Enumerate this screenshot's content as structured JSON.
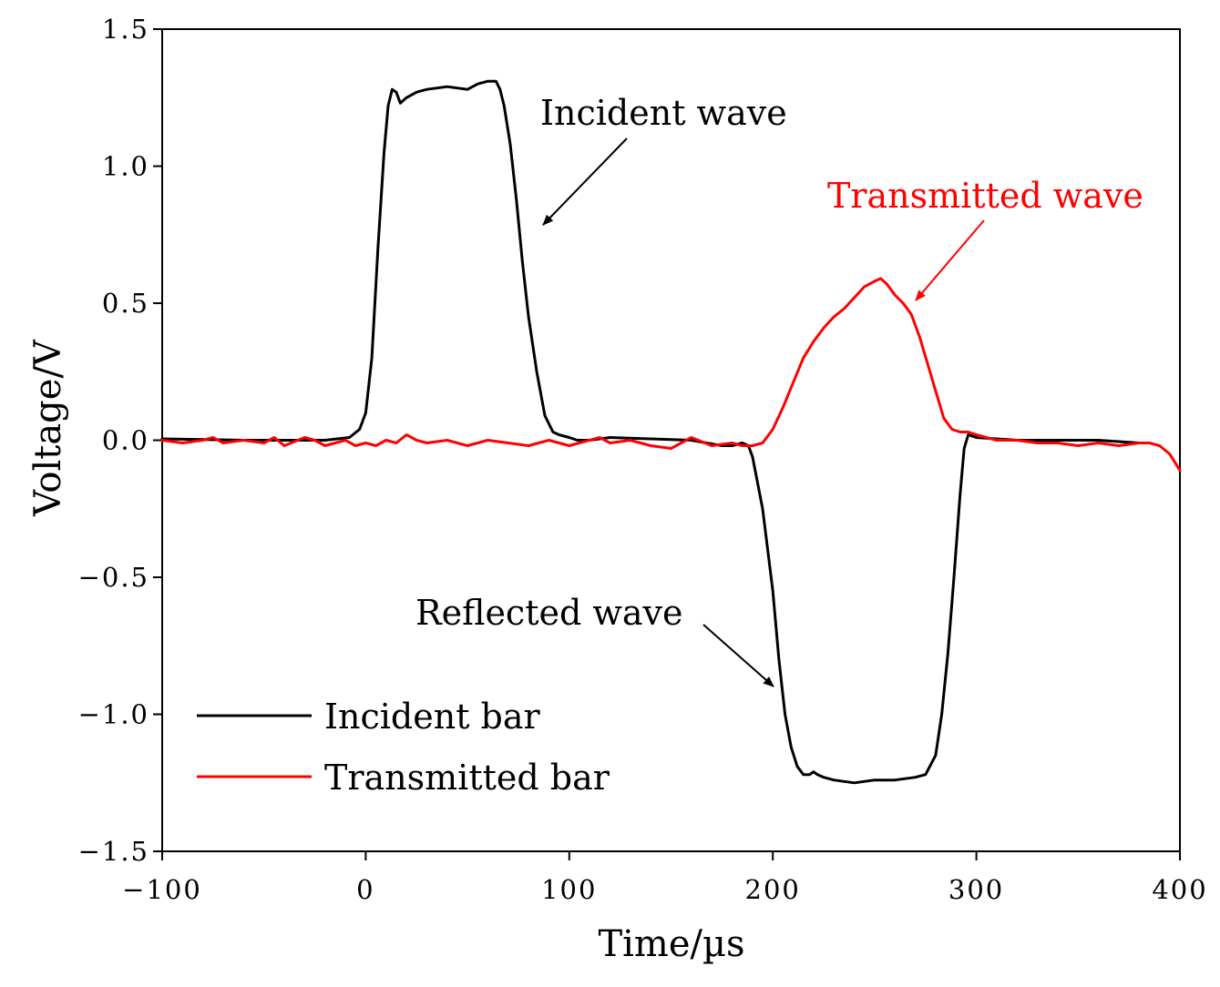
{
  "chart_data": {
    "type": "line",
    "title": "",
    "xlabel": "Time/µs",
    "ylabel": "Voltage/V",
    "xlim": [
      -100,
      400
    ],
    "ylim": [
      -1.5,
      1.5
    ],
    "xticks": [
      -100,
      0,
      100,
      200,
      300,
      400
    ],
    "xtick_labels": [
      "−100",
      "0",
      "100",
      "200",
      "300",
      "400"
    ],
    "yticks": [
      1.5,
      1.0,
      0.5,
      0.0,
      -0.5,
      -1.0,
      -1.5
    ],
    "ytick_labels": [
      "1.5",
      "1.0",
      "0.5",
      "0.0",
      "−0.5",
      "−1.0",
      "−1.5"
    ],
    "grid": false,
    "legend_position": "bottom-left",
    "series": [
      {
        "name": "Incident bar",
        "color": "#000000",
        "x": [
          -100,
          -60,
          -20,
          -8,
          -3,
          0,
          3,
          6,
          9,
          11,
          13,
          15,
          17,
          20,
          25,
          30,
          40,
          50,
          55,
          60,
          64,
          66,
          68,
          71,
          74,
          77,
          80,
          84,
          88,
          92,
          95,
          100,
          104,
          110,
          120,
          140,
          160,
          175,
          180,
          185,
          188,
          190,
          195,
          200,
          203,
          206,
          209,
          212,
          215,
          218,
          220,
          222,
          225,
          230,
          240,
          250,
          260,
          270,
          275,
          280,
          283,
          286,
          289,
          292,
          294,
          296,
          300,
          320,
          340,
          360,
          380
        ],
        "y": [
          0.005,
          0.0,
          0.0,
          0.01,
          0.04,
          0.1,
          0.3,
          0.7,
          1.05,
          1.22,
          1.28,
          1.27,
          1.23,
          1.25,
          1.27,
          1.28,
          1.29,
          1.28,
          1.3,
          1.31,
          1.31,
          1.28,
          1.22,
          1.08,
          0.88,
          0.65,
          0.45,
          0.25,
          0.09,
          0.03,
          0.02,
          0.01,
          0.0,
          0.0,
          0.01,
          0.005,
          0.0,
          -0.02,
          -0.02,
          -0.01,
          -0.02,
          -0.06,
          -0.25,
          -0.55,
          -0.8,
          -1.0,
          -1.12,
          -1.19,
          -1.22,
          -1.22,
          -1.21,
          -1.22,
          -1.23,
          -1.24,
          -1.25,
          -1.24,
          -1.24,
          -1.23,
          -1.22,
          -1.15,
          -1.0,
          -0.78,
          -0.5,
          -0.2,
          -0.03,
          0.02,
          0.01,
          0.0,
          0.0,
          0.0,
          -0.01
        ]
      },
      {
        "name": "Transmitted bar",
        "color": "#ff0000",
        "x": [
          -100,
          -90,
          -80,
          -75,
          -70,
          -60,
          -50,
          -45,
          -40,
          -30,
          -25,
          -20,
          -15,
          -10,
          -5,
          0,
          5,
          10,
          15,
          20,
          25,
          30,
          40,
          50,
          60,
          70,
          80,
          90,
          100,
          110,
          115,
          120,
          130,
          140,
          150,
          160,
          170,
          180,
          185,
          190,
          195,
          200,
          205,
          210,
          215,
          220,
          225,
          230,
          235,
          240,
          245,
          250,
          253,
          256,
          260,
          264,
          268,
          272,
          276,
          280,
          284,
          288,
          292,
          296,
          300,
          310,
          320,
          330,
          340,
          350,
          360,
          370,
          380,
          385,
          390,
          395,
          400
        ],
        "y": [
          0.0,
          -0.01,
          0.0,
          0.01,
          -0.01,
          0.0,
          -0.01,
          0.01,
          -0.02,
          0.01,
          0.0,
          -0.02,
          -0.01,
          0.0,
          -0.02,
          -0.01,
          -0.02,
          0.0,
          -0.01,
          0.02,
          0.0,
          -0.01,
          0.0,
          -0.02,
          0.0,
          -0.01,
          -0.02,
          0.0,
          -0.02,
          0.0,
          0.01,
          -0.01,
          0.0,
          -0.02,
          -0.03,
          0.01,
          -0.02,
          -0.01,
          -0.02,
          -0.02,
          -0.01,
          0.04,
          0.12,
          0.21,
          0.3,
          0.36,
          0.41,
          0.45,
          0.48,
          0.52,
          0.56,
          0.58,
          0.59,
          0.57,
          0.53,
          0.5,
          0.46,
          0.38,
          0.28,
          0.18,
          0.08,
          0.04,
          0.03,
          0.03,
          0.02,
          0.0,
          0.0,
          -0.01,
          -0.01,
          -0.02,
          -0.01,
          -0.02,
          -0.01,
          -0.01,
          -0.02,
          -0.05,
          -0.11
        ]
      }
    ],
    "annotations": [
      {
        "text": "Incident wave",
        "color": "#000000"
      },
      {
        "text": "Transmitted wave",
        "color": "#ff0000"
      },
      {
        "text": "Reflected wave",
        "color": "#000000"
      }
    ]
  }
}
